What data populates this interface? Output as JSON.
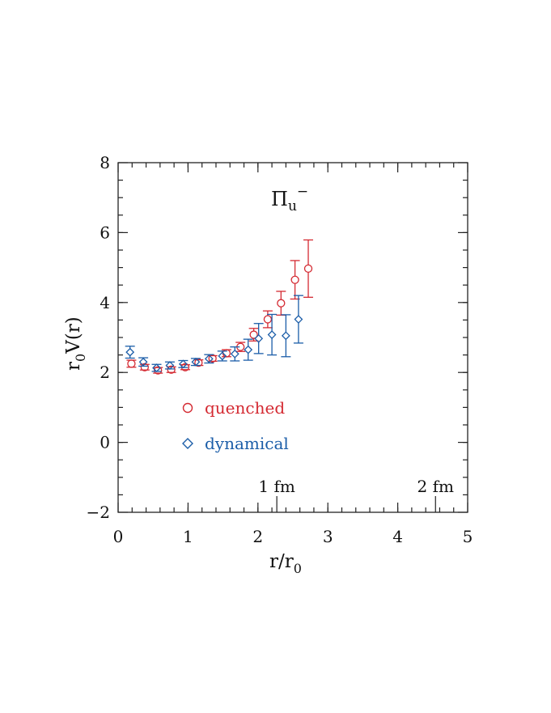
{
  "chart_data": {
    "type": "scatter",
    "title": "",
    "panel_label": {
      "base": "Π",
      "sub": "u",
      "sup": "−"
    },
    "xlabel": {
      "base": "r/r",
      "sub": "0"
    },
    "ylabel": {
      "sub": "0",
      "rest": "V(r)",
      "pre": "r"
    },
    "xlim": [
      0,
      5
    ],
    "ylim": [
      -2,
      8
    ],
    "x_ticks": [
      0,
      1,
      2,
      3,
      4,
      5
    ],
    "y_ticks": [
      -2,
      0,
      2,
      4,
      6,
      8
    ],
    "x_tick_labels": [
      "0",
      "1",
      "2",
      "3",
      "4",
      "5"
    ],
    "y_tick_labels": [
      "−2",
      "0",
      "2",
      "4",
      "6",
      "8"
    ],
    "x_minor_step": 0.2,
    "y_minor_step": 0.5,
    "grid": false,
    "legend_position": "lower-left",
    "annotations": [
      {
        "label": "1 fm",
        "x": 2.27
      },
      {
        "label": "2 fm",
        "x": 4.54
      }
    ],
    "series": [
      {
        "name": "quenched",
        "marker": "circle",
        "color": "#d42a32",
        "points": [
          {
            "x": 0.19,
            "y": 2.25,
            "err": 0.1
          },
          {
            "x": 0.38,
            "y": 2.15,
            "err": 0.08
          },
          {
            "x": 0.57,
            "y": 2.06,
            "err": 0.08
          },
          {
            "x": 0.76,
            "y": 2.08,
            "err": 0.08
          },
          {
            "x": 0.96,
            "y": 2.15,
            "err": 0.07
          },
          {
            "x": 1.15,
            "y": 2.28,
            "err": 0.08
          },
          {
            "x": 1.35,
            "y": 2.4,
            "err": 0.08
          },
          {
            "x": 1.55,
            "y": 2.55,
            "err": 0.1
          },
          {
            "x": 1.75,
            "y": 2.73,
            "err": 0.13
          },
          {
            "x": 1.94,
            "y": 3.08,
            "err": 0.18
          },
          {
            "x": 2.14,
            "y": 3.52,
            "err": 0.24
          },
          {
            "x": 2.33,
            "y": 3.98,
            "err": 0.34
          },
          {
            "x": 2.53,
            "y": 4.65,
            "err": 0.55
          },
          {
            "x": 2.72,
            "y": 4.97,
            "err": 0.82
          }
        ]
      },
      {
        "name": "dynamical",
        "marker": "diamond",
        "color": "#1b5da8",
        "points": [
          {
            "x": 0.17,
            "y": 2.58,
            "err": 0.17
          },
          {
            "x": 0.36,
            "y": 2.3,
            "err": 0.12
          },
          {
            "x": 0.55,
            "y": 2.13,
            "err": 0.1
          },
          {
            "x": 0.74,
            "y": 2.2,
            "err": 0.1
          },
          {
            "x": 0.93,
            "y": 2.24,
            "err": 0.1
          },
          {
            "x": 1.11,
            "y": 2.3,
            "err": 0.1
          },
          {
            "x": 1.3,
            "y": 2.39,
            "err": 0.12
          },
          {
            "x": 1.49,
            "y": 2.47,
            "err": 0.14
          },
          {
            "x": 1.67,
            "y": 2.53,
            "err": 0.2
          },
          {
            "x": 1.86,
            "y": 2.65,
            "err": 0.3
          },
          {
            "x": 2.01,
            "y": 2.97,
            "err": 0.43
          },
          {
            "x": 2.2,
            "y": 3.08,
            "err": 0.58
          },
          {
            "x": 2.4,
            "y": 3.05,
            "err": 0.6
          },
          {
            "x": 2.58,
            "y": 3.52,
            "err": 0.68
          }
        ]
      }
    ]
  }
}
